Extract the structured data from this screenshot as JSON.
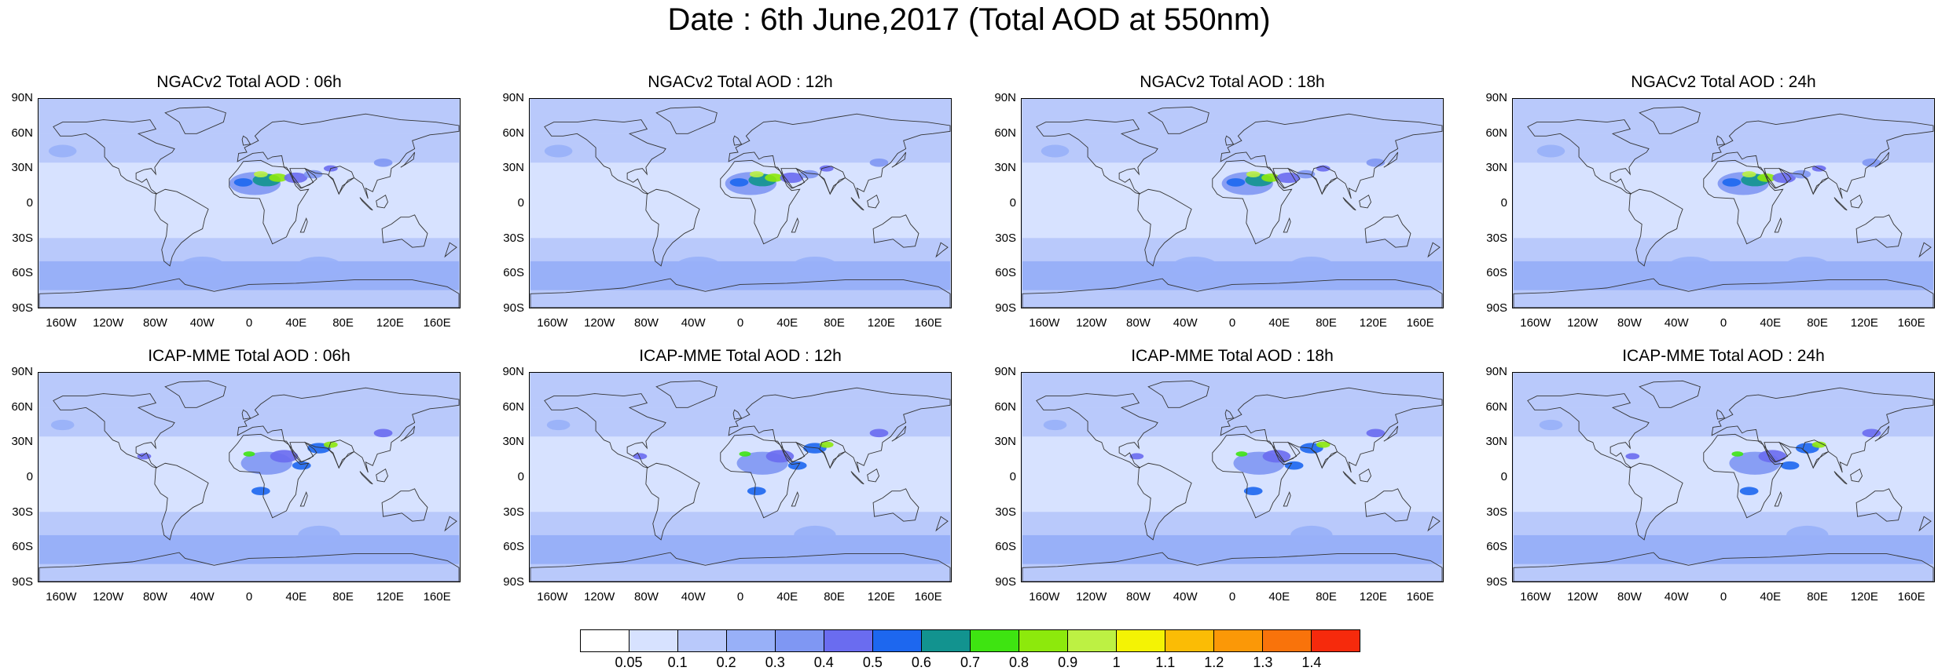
{
  "main_title": "Date : 6th June,2017 (Total AOD at 550nm)",
  "panels": [
    {
      "title": "NGACv2 Total AOD : 06h",
      "model": "NGACv2",
      "hour": "06h"
    },
    {
      "title": "NGACv2 Total AOD : 12h",
      "model": "NGACv2",
      "hour": "12h"
    },
    {
      "title": "NGACv2 Total AOD : 18h",
      "model": "NGACv2",
      "hour": "18h"
    },
    {
      "title": "NGACv2 Total AOD : 24h",
      "model": "NGACv2",
      "hour": "24h"
    },
    {
      "title": "ICAP-MME Total AOD : 06h",
      "model": "ICAP-MME",
      "hour": "06h"
    },
    {
      "title": "ICAP-MME Total AOD : 12h",
      "model": "ICAP-MME",
      "hour": "12h"
    },
    {
      "title": "ICAP-MME Total AOD : 18h",
      "model": "ICAP-MME",
      "hour": "18h"
    },
    {
      "title": "ICAP-MME Total AOD : 24h",
      "model": "ICAP-MME",
      "hour": "24h"
    }
  ],
  "lat_labels": [
    "90N",
    "60N",
    "30N",
    "0",
    "30S",
    "60S",
    "90S"
  ],
  "lon_labels": [
    "160W",
    "120W",
    "80W",
    "40W",
    "0",
    "40E",
    "80E",
    "120E",
    "160E"
  ],
  "lon_values": [
    -160,
    -120,
    -80,
    -40,
    0,
    40,
    80,
    120,
    160
  ],
  "lat_values": [
    90,
    60,
    30,
    0,
    -30,
    -60,
    -90
  ],
  "colorbar": {
    "labels": [
      "0.05",
      "0.1",
      "0.2",
      "0.3",
      "0.4",
      "0.5",
      "0.6",
      "0.7",
      "0.8",
      "0.9",
      "1",
      "1.1",
      "1.2",
      "1.3",
      "1.4"
    ],
    "colors": [
      "#ffffff",
      "#d7e2ff",
      "#b9c9fb",
      "#98b0f8",
      "#7f97f3",
      "#6a6cf0",
      "#1d67ef",
      "#12938f",
      "#3ee411",
      "#8de90c",
      "#bdf143",
      "#f4f304",
      "#fbbc05",
      "#fb9807",
      "#f9730b",
      "#f62a0c"
    ]
  }
}
